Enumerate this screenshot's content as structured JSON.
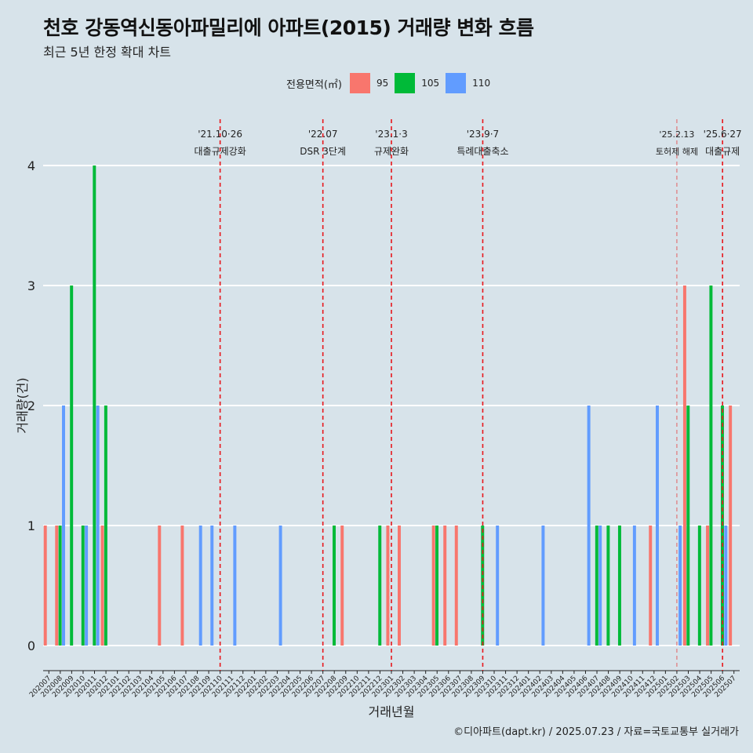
{
  "title": "천호 강동역신동아파밀리에 아파트(2015) 거래량 변화 흐름",
  "subtitle": "최근 5년 한정 확대 차트",
  "legend": {
    "title": "전용면적(㎡)",
    "items": [
      {
        "label": "95",
        "color": "#f8766d"
      },
      {
        "label": "105",
        "color": "#00ba38"
      },
      {
        "label": "110",
        "color": "#619cff"
      }
    ]
  },
  "footer": "©디아파트(dapt.kr) / 2025.07.23 / 자료=국토교통부 실거래가",
  "chart_data": {
    "type": "bar",
    "xlabel": "거래년월",
    "ylabel": "거래량(건)",
    "ylim": [
      0,
      4
    ],
    "yticks": [
      0,
      1,
      2,
      3,
      4
    ],
    "grid": true,
    "categories": [
      "202007",
      "202008",
      "202009",
      "202010",
      "202011",
      "202012",
      "202101",
      "202102",
      "202103",
      "202104",
      "202105",
      "202106",
      "202107",
      "202108",
      "202109",
      "202110",
      "202111",
      "202112",
      "202201",
      "202202",
      "202203",
      "202204",
      "202205",
      "202206",
      "202207",
      "202208",
      "202209",
      "202210",
      "202211",
      "202212",
      "202301",
      "202302",
      "202303",
      "202304",
      "202305",
      "202306",
      "202307",
      "202308",
      "202309",
      "202310",
      "202311",
      "202312",
      "202401",
      "202402",
      "202403",
      "202404",
      "202405",
      "202406",
      "202407",
      "202408",
      "202409",
      "202410",
      "202411",
      "202412",
      "202501",
      "202502",
      "202503",
      "202504",
      "202505",
      "202506",
      "202507"
    ],
    "series": [
      {
        "name": "95",
        "color": "#f8766d",
        "values": [
          1,
          1,
          0,
          0,
          0,
          1,
          0,
          0,
          0,
          0,
          1,
          0,
          1,
          0,
          0,
          0,
          0,
          0,
          0,
          0,
          0,
          0,
          0,
          0,
          0,
          0,
          1,
          0,
          0,
          0,
          1,
          1,
          0,
          0,
          1,
          1,
          1,
          0,
          0,
          0,
          0,
          0,
          0,
          0,
          0,
          0,
          0,
          0,
          0,
          0,
          0,
          0,
          0,
          1,
          0,
          0,
          3,
          0,
          1,
          0,
          2
        ]
      },
      {
        "name": "105",
        "color": "#00ba38",
        "values": [
          0,
          1,
          3,
          1,
          4,
          2,
          0,
          0,
          0,
          0,
          0,
          0,
          0,
          0,
          0,
          0,
          0,
          0,
          0,
          0,
          0,
          0,
          0,
          0,
          0,
          1,
          0,
          0,
          0,
          1,
          0,
          0,
          0,
          0,
          1,
          0,
          0,
          0,
          1,
          0,
          0,
          0,
          0,
          0,
          0,
          0,
          0,
          0,
          1,
          1,
          1,
          0,
          0,
          0,
          0,
          0,
          2,
          1,
          3,
          2,
          0
        ]
      },
      {
        "name": "110",
        "color": "#619cff",
        "values": [
          0,
          2,
          0,
          1,
          2,
          0,
          0,
          0,
          0,
          0,
          0,
          0,
          0,
          1,
          1,
          0,
          1,
          0,
          0,
          0,
          1,
          0,
          0,
          0,
          0,
          0,
          0,
          0,
          0,
          0,
          0,
          0,
          0,
          0,
          0,
          0,
          0,
          0,
          0,
          1,
          0,
          0,
          0,
          1,
          0,
          0,
          0,
          2,
          1,
          0,
          0,
          1,
          0,
          2,
          0,
          1,
          0,
          0,
          0,
          1,
          0
        ]
      }
    ],
    "annotations": [
      {
        "x": "202110",
        "date": "'21.10·26",
        "label": "대출규제강화"
      },
      {
        "x": "202207",
        "date": "'22.07",
        "label": "DSR 3단계"
      },
      {
        "x": "202301",
        "date": "'23.1·3",
        "label": "규제완화"
      },
      {
        "x": "202309",
        "date": "'23.9·7",
        "label": "특례대출축소"
      },
      {
        "x": "202502",
        "date": "'25.2.13",
        "label": "토허제 해제"
      },
      {
        "x": "202506",
        "date": "'25.6·27",
        "label": "대출규제"
      }
    ]
  }
}
